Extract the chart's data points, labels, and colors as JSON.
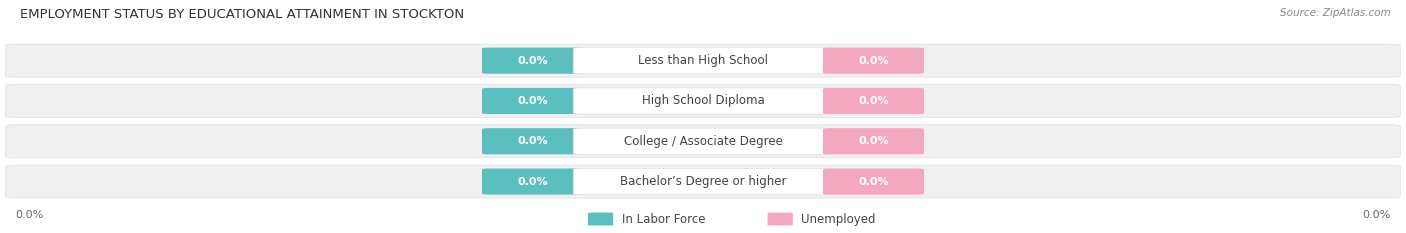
{
  "title": "EMPLOYMENT STATUS BY EDUCATIONAL ATTAINMENT IN STOCKTON",
  "source": "Source: ZipAtlas.com",
  "categories": [
    "Less than High School",
    "High School Diploma",
    "College / Associate Degree",
    "Bachelor’s Degree or higher"
  ],
  "left_values": [
    "0.0%",
    "0.0%",
    "0.0%",
    "0.0%"
  ],
  "right_values": [
    "0.0%",
    "0.0%",
    "0.0%",
    "0.0%"
  ],
  "left_color": "#5bbfc0",
  "right_color": "#f4a8c0",
  "bar_bg_color": "#f0f0f0",
  "bar_edge_color": "#e0e0e0",
  "label_left": "In Labor Force",
  "label_right": "Unemployed",
  "axis_left_label": "0.0%",
  "axis_right_label": "0.0%",
  "title_fontsize": 9.5,
  "source_fontsize": 7.5,
  "category_fontsize": 8.5,
  "value_fontsize": 8,
  "legend_fontsize": 8.5,
  "background_color": "#ffffff",
  "title_color": "#333333",
  "source_color": "#888888",
  "category_color": "#444444",
  "axis_label_color": "#666666",
  "legend_color": "#444444",
  "value_text_color": "#ffffff",
  "cat_box_color": "#ffffff",
  "cat_box_edge": "#dddddd"
}
